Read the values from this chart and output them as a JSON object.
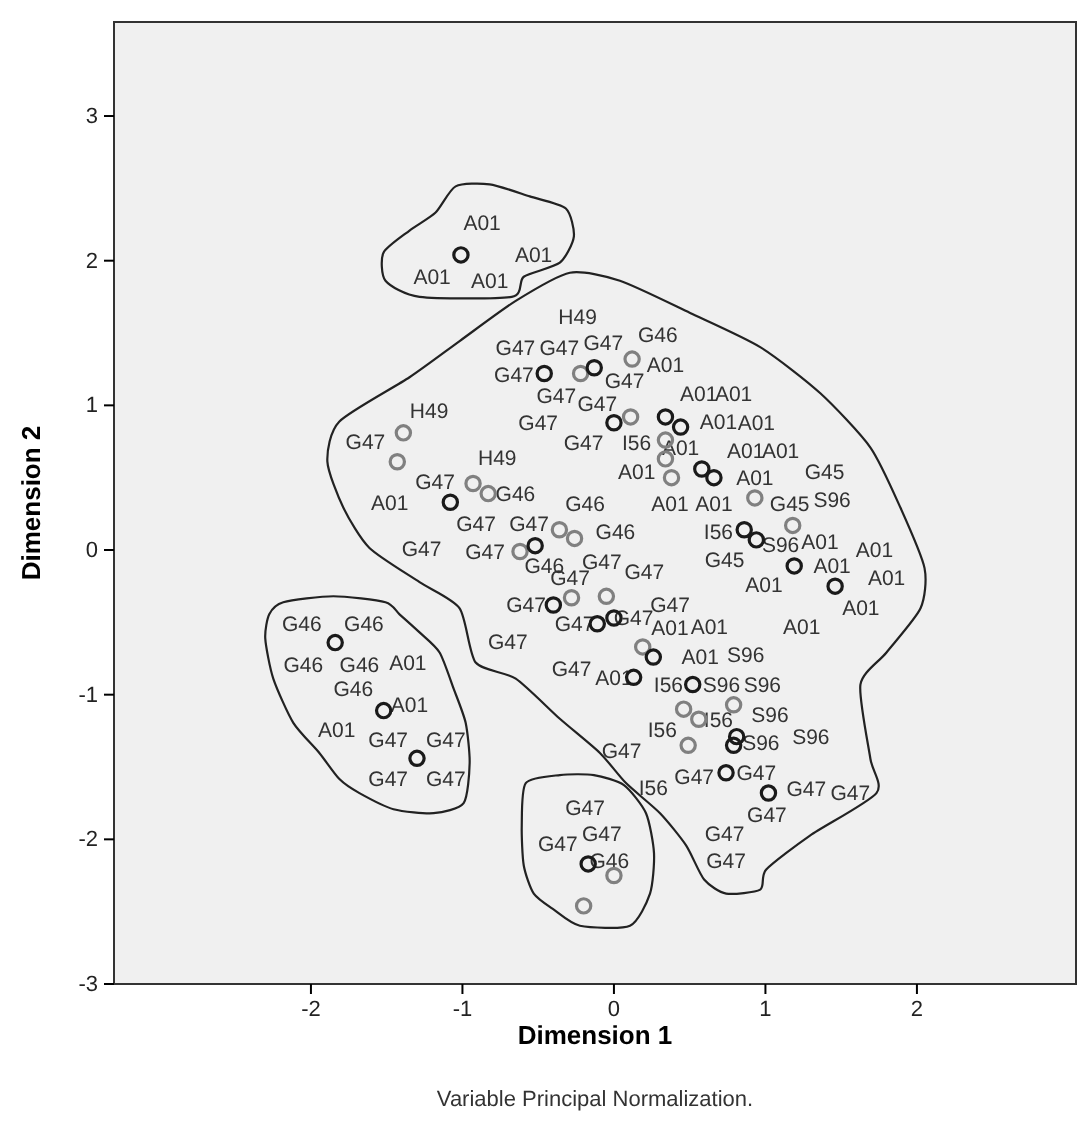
{
  "chart_data": {
    "type": "scatter",
    "xlabel": "Dimension 1",
    "ylabel": "Dimension 2",
    "xlim": [
      -3.3,
      3.05
    ],
    "ylim": [
      -3,
      3.65
    ],
    "xticks": [
      -2,
      -1,
      0,
      1,
      2
    ],
    "yticks": [
      -3,
      -2,
      -1,
      0,
      1,
      2,
      3
    ],
    "marker": "circle",
    "series": [
      {
        "color": "#808080",
        "x": [
          0.12,
          -0.22,
          0.11,
          -1.39,
          -1.43,
          -0.93,
          -0.83,
          -0.36,
          -0.26,
          -0.62,
          -0.28,
          -0.05,
          0.34,
          0.34,
          0.38,
          0.93,
          1.18,
          0.19,
          0.79,
          0.46,
          0.56,
          0.49,
          0.0,
          -0.2
        ],
        "values": [
          1.32,
          1.22,
          0.92,
          0.81,
          0.61,
          0.46,
          0.39,
          0.14,
          0.08,
          -0.01,
          -0.33,
          -0.32,
          0.76,
          0.63,
          0.5,
          0.36,
          0.17,
          -0.67,
          -1.07,
          -1.1,
          -1.17,
          -1.35,
          -2.25,
          -2.46
        ]
      },
      {
        "color": "#1a1a1a",
        "x": [
          -1.01,
          -0.13,
          -0.46,
          0.0,
          -1.08,
          -0.52,
          -0.4,
          -0.11,
          0.0,
          0.34,
          0.44,
          0.58,
          0.66,
          0.86,
          0.94,
          1.19,
          1.46,
          0.26,
          0.13,
          0.52,
          0.81,
          0.79,
          0.74,
          1.02,
          -1.84,
          -1.52,
          -1.3,
          -0.17
        ],
        "values": [
          2.04,
          1.26,
          1.22,
          0.88,
          0.33,
          0.03,
          -0.38,
          -0.51,
          -0.47,
          0.92,
          0.85,
          0.56,
          0.5,
          0.14,
          0.07,
          -0.11,
          -0.25,
          -0.74,
          -0.88,
          -0.93,
          -1.29,
          -1.35,
          -1.54,
          -1.68,
          -0.64,
          -1.11,
          -1.44,
          -2.17
        ]
      }
    ],
    "annotations": [
      "A01",
      "A01",
      "A01",
      "A01",
      "H49",
      "G46",
      "G47",
      "G47",
      "G47",
      "A01",
      "G47",
      "G47",
      "G47",
      "G47",
      "A01",
      "A01",
      "H49",
      "G47",
      "G47",
      "A01",
      "A01",
      "G47",
      "I56",
      "A01",
      "A01",
      "A01",
      "H49",
      "A01",
      "A01",
      "G45",
      "G47",
      "A01",
      "G46",
      "G46",
      "A01",
      "A01",
      "G45",
      "S96",
      "G47",
      "G47",
      "G46",
      "I56",
      "G47",
      "G47",
      "S96",
      "A01",
      "A01",
      "G46",
      "G47",
      "G45",
      "G47",
      "G47",
      "A01",
      "A01",
      "A01",
      "G47",
      "G47",
      "A01",
      "G47",
      "G47",
      "A01",
      "A01",
      "A01",
      "G47",
      "A01",
      "S96",
      "G47",
      "A01",
      "I56",
      "S96",
      "S96",
      "I56",
      "S96",
      "I56",
      "S96",
      "S96",
      "G47",
      "G47",
      "G47",
      "I56",
      "G47",
      "G47",
      "G47",
      "G47",
      "G47",
      "G46",
      "G46",
      "G46",
      "G46",
      "A01",
      "G46",
      "A01",
      "A01",
      "G47",
      "G47",
      "G47",
      "G47",
      "G47",
      "G47",
      "G47",
      "G46",
      "Variable Principal Normalization."
    ]
  }
}
